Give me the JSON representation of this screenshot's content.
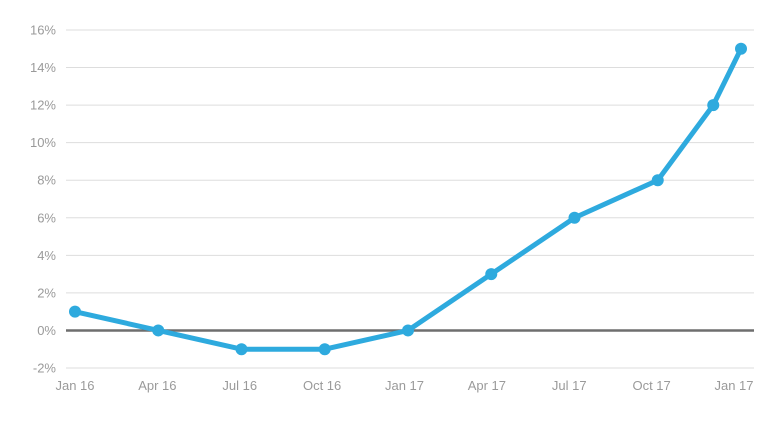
{
  "chart_data": {
    "type": "line",
    "title": "",
    "xlabel": "",
    "ylabel": "",
    "categories": [
      "Jan 16",
      "Apr 16",
      "Jul 16",
      "Oct 16",
      "Jan 17",
      "Apr 17",
      "Jul 17",
      "Oct 17",
      "Jan 17"
    ],
    "series": [
      {
        "x": [
          "2016-01",
          "2016-04",
          "2016-07",
          "2016-10",
          "2017-01",
          "2017-04",
          "2017-07",
          "2017-10",
          "2017-12",
          "2018-01"
        ],
        "values": [
          1,
          0,
          -1,
          -1,
          0,
          3,
          6,
          8,
          12,
          15
        ],
        "color": "#2eaade"
      }
    ],
    "ylim": [
      -2,
      16
    ],
    "yticks": [
      "-2%",
      "0%",
      "2%",
      "4%",
      "6%",
      "8%",
      "10%",
      "12%",
      "14%",
      "16%"
    ],
    "ytick_values": [
      -2,
      0,
      2,
      4,
      6,
      8,
      10,
      12,
      14,
      16
    ],
    "y_unit": "%",
    "grid": true,
    "legend": "none",
    "colors": {
      "series": "#2eaade",
      "grid": "#dddddd",
      "zero_line": "#6e6e6e",
      "tick_text": "#9a9a9a"
    }
  }
}
